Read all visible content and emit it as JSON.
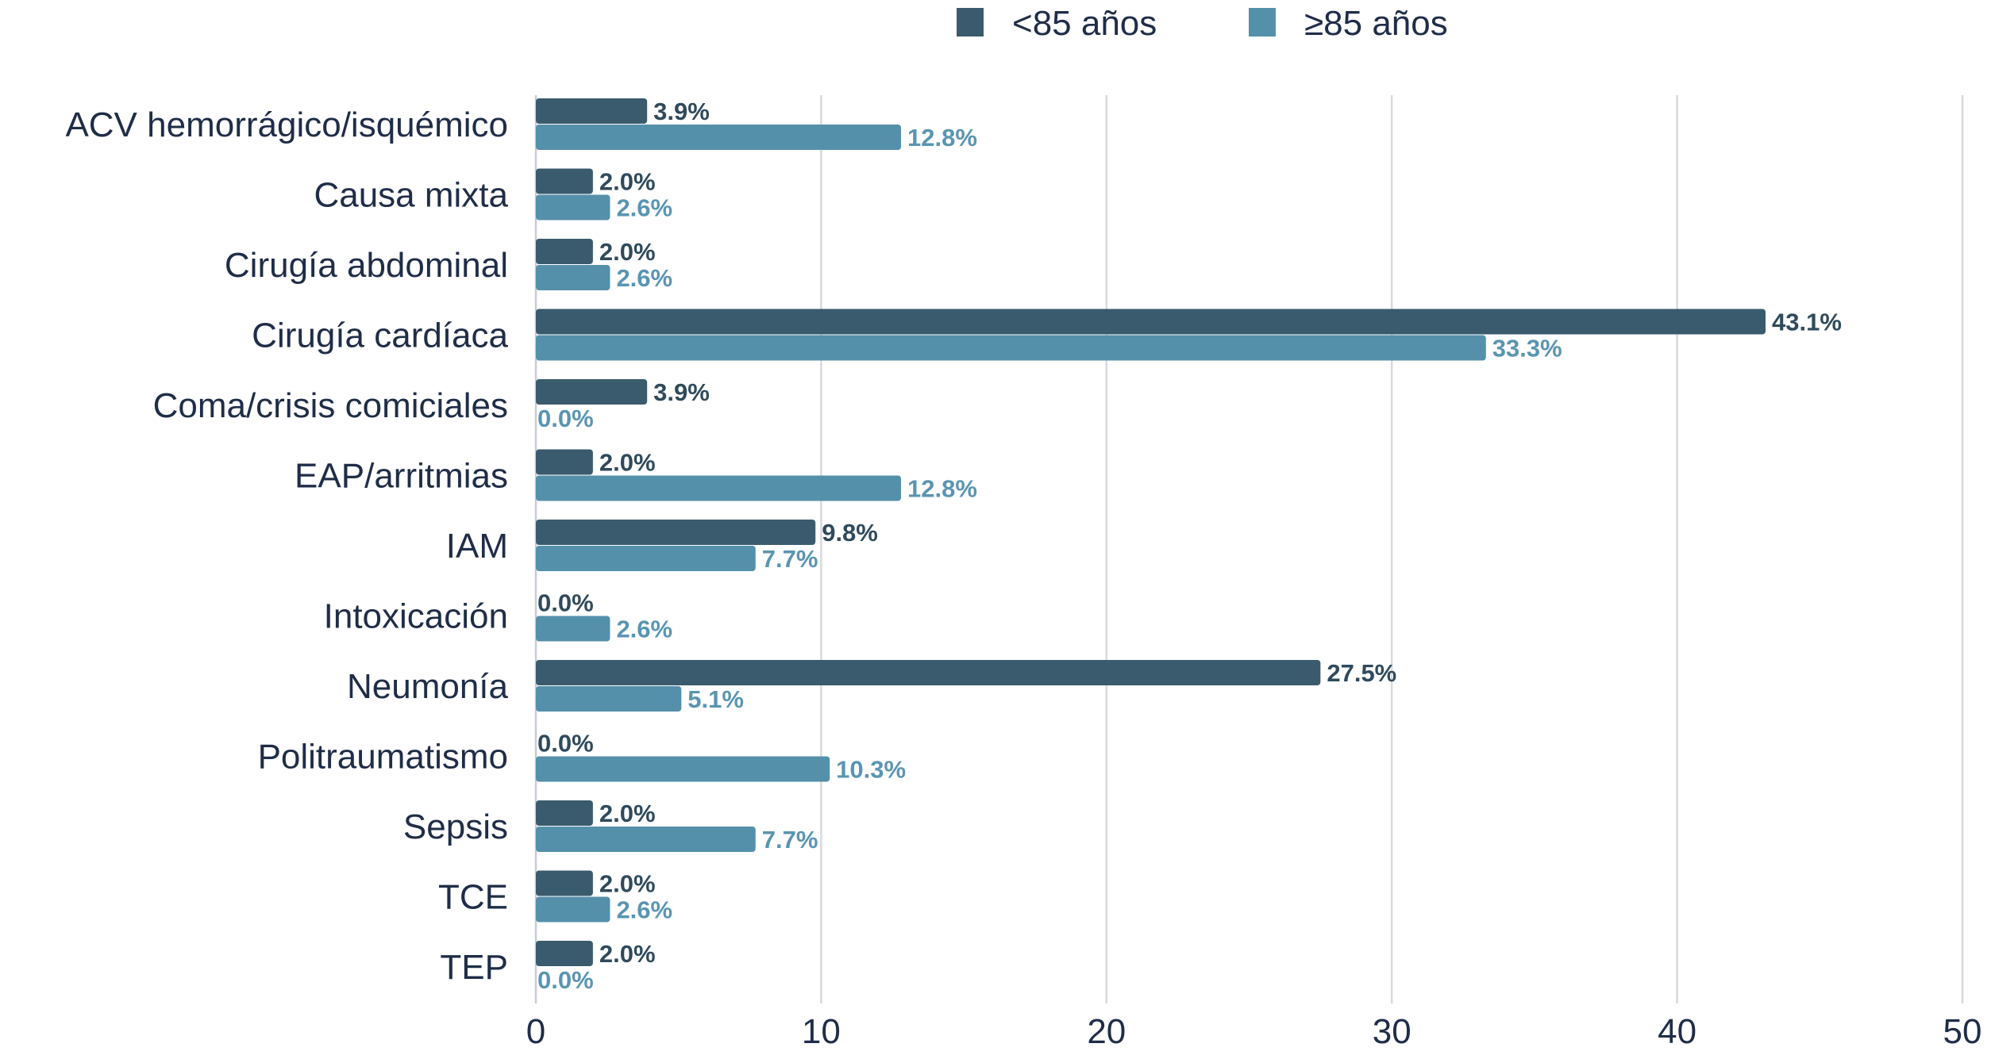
{
  "chart_data": {
    "type": "bar",
    "orientation": "horizontal",
    "title": "",
    "xlabel": "",
    "ylabel": "",
    "xlim": [
      0,
      50
    ],
    "xticks": [
      0,
      10,
      20,
      30,
      40,
      50
    ],
    "grid": "vertical",
    "legend_position": "top",
    "categories": [
      "ACV hemorrágico/isquémico",
      "Causa mixta",
      "Cirugía abdominal",
      "Cirugía cardíaca",
      "Coma/crisis comiciales",
      "EAP/arritmias",
      "IAM",
      "Intoxicación",
      "Neumonía",
      "Politraumatismo",
      "Sepsis",
      "TCE",
      "TEP"
    ],
    "series": [
      {
        "name": "<85 años",
        "color": "#3a5b6d",
        "label_color": "#2f4a5c",
        "values": [
          3.9,
          2.0,
          2.0,
          43.1,
          3.9,
          2.0,
          9.8,
          0.0,
          27.5,
          0.0,
          2.0,
          2.0,
          2.0
        ],
        "labels": [
          "3.9%",
          "2.0%",
          "2.0%",
          "43.1%",
          "3.9%",
          "2.0%",
          "9.8%",
          "0.0%",
          "27.5%",
          "0.0%",
          "2.0%",
          "2.0%",
          "2.0%"
        ]
      },
      {
        "name": "≥85 años",
        "color": "#5590ab",
        "label_color": "#5a95b1",
        "values": [
          12.8,
          2.6,
          2.6,
          33.3,
          0.0,
          12.8,
          7.7,
          2.6,
          5.1,
          10.3,
          7.7,
          2.6,
          0.0
        ],
        "labels": [
          "12.8%",
          "2.6%",
          "2.6%",
          "33.3%",
          "0.0%",
          "12.8%",
          "7.7%",
          "2.6%",
          "5.1%",
          "10.3%",
          "7.7%",
          "2.6%",
          "0.0%"
        ]
      }
    ]
  }
}
